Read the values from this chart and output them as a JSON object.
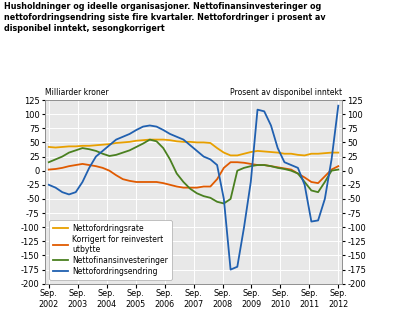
{
  "title": "Husholdninger og ideelle organisasjoner. Nettofinansinvesteringer og\nnettofordringsendring siste fire kvartaler. Nettofordringer i prosent av\ndisponibel inntekt, sesongkorrigert",
  "ylabel_left": "Milliarder kroner",
  "ylabel_right": "Prosent av disponibel inntekt",
  "xlabels": [
    "Sep.\n2002",
    "Sep.\n2003",
    "Sep.\n2004",
    "Sep.\n2005",
    "Sep.\n2006",
    "Sep.\n2007",
    "Sep.\n2008",
    "Sep.\n2009",
    "Sep.\n2010",
    "Sep.\n2011",
    "Sep.\n2012"
  ],
  "x_tick_positions": [
    0,
    4,
    8,
    12,
    16,
    20,
    24,
    28,
    32,
    36,
    40
  ],
  "nettofordringsrate": [
    42,
    41,
    42,
    43,
    43,
    44,
    44,
    45,
    46,
    47,
    49,
    50,
    51,
    53,
    54,
    55,
    55,
    55,
    54,
    52,
    51,
    51,
    50,
    50,
    49,
    40,
    32,
    27,
    27,
    30,
    33,
    35,
    34,
    33,
    32,
    30,
    30,
    28,
    27,
    30,
    30,
    31,
    32,
    32
  ],
  "korrigert": [
    2,
    3,
    5,
    8,
    10,
    12,
    10,
    8,
    5,
    0,
    -8,
    -15,
    -18,
    -20,
    -20,
    -20,
    -20,
    -22,
    -25,
    -28,
    -30,
    -30,
    -30,
    -28,
    -28,
    -15,
    5,
    15,
    15,
    14,
    12,
    10,
    10,
    8,
    6,
    4,
    2,
    -5,
    -12,
    -20,
    -22,
    -10,
    2,
    8
  ],
  "nettofinansinvesteringer": [
    15,
    20,
    25,
    32,
    36,
    40,
    38,
    35,
    30,
    26,
    28,
    32,
    36,
    42,
    48,
    55,
    52,
    40,
    20,
    -5,
    -20,
    -32,
    -40,
    -45,
    -48,
    -55,
    -58,
    -50,
    0,
    5,
    8,
    10,
    10,
    8,
    5,
    3,
    0,
    -5,
    -20,
    -35,
    -38,
    -20,
    0,
    2
  ],
  "nettofordringsendring": [
    -25,
    -30,
    -38,
    -42,
    -38,
    -20,
    5,
    25,
    35,
    45,
    55,
    60,
    65,
    72,
    78,
    80,
    78,
    72,
    65,
    60,
    55,
    45,
    35,
    25,
    20,
    10,
    -50,
    -175,
    -170,
    -100,
    -20,
    108,
    105,
    80,
    40,
    15,
    10,
    5,
    -25,
    -90,
    -88,
    -50,
    20,
    115
  ],
  "n_points": 44,
  "ylim_min": -200,
  "ylim_max": 125,
  "yticks": [
    -200,
    -175,
    -150,
    -125,
    -100,
    -75,
    -50,
    -25,
    0,
    25,
    50,
    75,
    100,
    125
  ],
  "legend_labels": [
    "Nettofordringsrate",
    "Korrigert for reinvestert\nutbytte",
    "Nettofinansinvesteringer",
    "Nettofordringsendring"
  ],
  "line_colors": [
    "#e8a000",
    "#e05a00",
    "#4a8020",
    "#2060b0"
  ],
  "bg_color": "#e8e8e8"
}
